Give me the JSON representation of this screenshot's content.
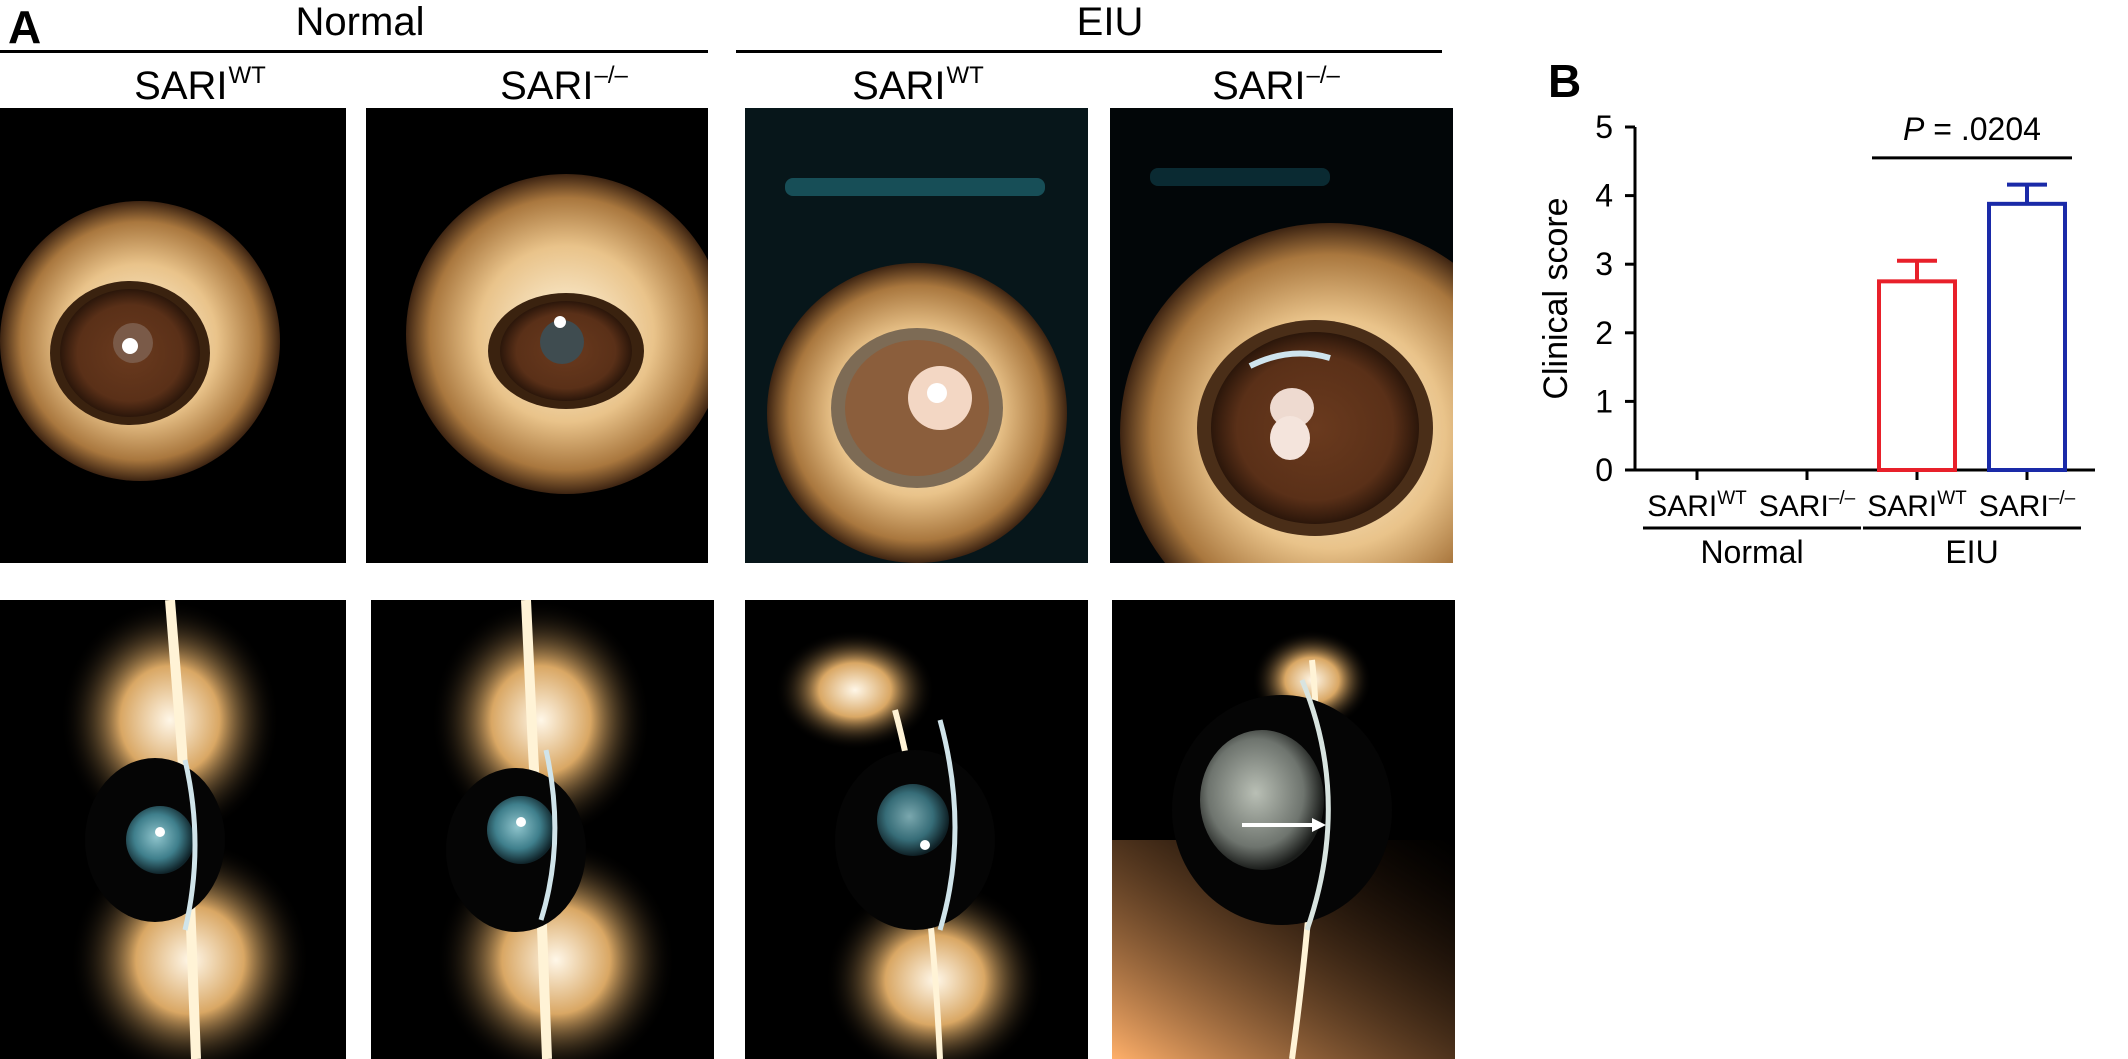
{
  "panel_a": {
    "letter": "A",
    "groups": [
      {
        "title": "Normal"
      },
      {
        "title": "EIU"
      }
    ],
    "columns": [
      {
        "base": "SARI",
        "sup": "WT"
      },
      {
        "base": "SARI",
        "sup": "–/–"
      },
      {
        "base": "SARI",
        "sup": "WT"
      },
      {
        "base": "SARI",
        "sup": "–/–"
      }
    ]
  },
  "panel_b": {
    "letter": "B"
  },
  "chart_data": {
    "type": "bar",
    "title": "",
    "ylabel": "Clinical score",
    "xlabel": "",
    "ylim": [
      0,
      5
    ],
    "yticks": [
      0,
      1,
      2,
      3,
      4,
      5
    ],
    "categories": [
      {
        "base": "SARI",
        "sup": "WT"
      },
      {
        "base": "SARI",
        "sup": "–/–"
      },
      {
        "base": "SARI",
        "sup": "WT"
      },
      {
        "base": "SARI",
        "sup": "–/–"
      }
    ],
    "values": [
      0,
      0,
      2.75,
      3.88
    ],
    "errors": [
      0,
      0,
      0.3,
      0.28
    ],
    "bar_colors": [
      "#000000",
      "#000000",
      "#e8202a",
      "#1a2aa8"
    ],
    "group_labels": [
      {
        "label": "Normal",
        "span": [
          0,
          1
        ]
      },
      {
        "label": "EIU",
        "span": [
          2,
          3
        ]
      }
    ],
    "significance": {
      "between": [
        2,
        3
      ],
      "p_italic": "P",
      "text": " = .0204"
    },
    "grid": false
  }
}
